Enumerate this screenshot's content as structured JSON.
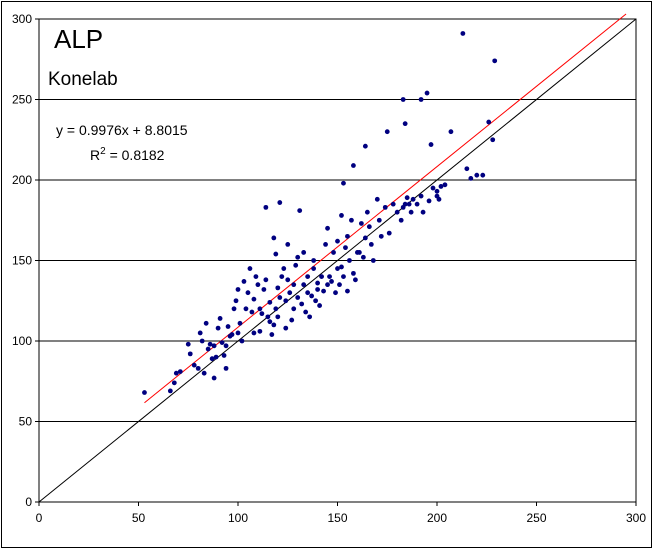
{
  "chart_data": {
    "type": "scatter",
    "title": "ALP",
    "subtitle": "Konelab",
    "annotations": {
      "equation": "y = 0.9976x + 8.8015",
      "r2_prefix": "R",
      "r2_sup": "2",
      "r2_suffix": " = 0.8182"
    },
    "xlim": [
      0,
      300
    ],
    "ylim": [
      0,
      300
    ],
    "x_ticks": [
      0,
      50,
      100,
      150,
      200,
      250,
      300
    ],
    "y_ticks": [
      0,
      50,
      100,
      150,
      200,
      250,
      300
    ],
    "grid": "horizontal",
    "colors": {
      "points": "#000080",
      "fit_line": "#ff0000",
      "identity_line": "#000000"
    },
    "fit_line": {
      "slope": 0.9976,
      "intercept": 8.8015,
      "x_range": [
        53,
        295
      ]
    },
    "identity_line": {
      "x_range": [
        0,
        300
      ]
    },
    "series": [
      {
        "points": [
          [
            53,
            68
          ],
          [
            66,
            69
          ],
          [
            68,
            74
          ],
          [
            69,
            80
          ],
          [
            71,
            81
          ],
          [
            75,
            98
          ],
          [
            76,
            92
          ],
          [
            78,
            85
          ],
          [
            80,
            83
          ],
          [
            81,
            105
          ],
          [
            82,
            100
          ],
          [
            83,
            80
          ],
          [
            84,
            111
          ],
          [
            85,
            95
          ],
          [
            86,
            98
          ],
          [
            87,
            89
          ],
          [
            88,
            97
          ],
          [
            88,
            77
          ],
          [
            89,
            90
          ],
          [
            90,
            108
          ],
          [
            91,
            114
          ],
          [
            92,
            99
          ],
          [
            93,
            91
          ],
          [
            94,
            83
          ],
          [
            94,
            97
          ],
          [
            95,
            109
          ],
          [
            96,
            103
          ],
          [
            97,
            104
          ],
          [
            98,
            120
          ],
          [
            99,
            125
          ],
          [
            100,
            132
          ],
          [
            100,
            105
          ],
          [
            101,
            111
          ],
          [
            102,
            100
          ],
          [
            103,
            137
          ],
          [
            104,
            120
          ],
          [
            105,
            130
          ],
          [
            106,
            145
          ],
          [
            107,
            118
          ],
          [
            108,
            126
          ],
          [
            108,
            105
          ],
          [
            109,
            140
          ],
          [
            110,
            135
          ],
          [
            111,
            120
          ],
          [
            111,
            106
          ],
          [
            112,
            117
          ],
          [
            113,
            132
          ],
          [
            114,
            138
          ],
          [
            114,
            183
          ],
          [
            115,
            115
          ],
          [
            116,
            112
          ],
          [
            116,
            124
          ],
          [
            117,
            104
          ],
          [
            118,
            110
          ],
          [
            118,
            164
          ],
          [
            119,
            120
          ],
          [
            119,
            154
          ],
          [
            120,
            133
          ],
          [
            120,
            115
          ],
          [
            121,
            186
          ],
          [
            121,
            127
          ],
          [
            122,
            140
          ],
          [
            123,
            145
          ],
          [
            124,
            125
          ],
          [
            124,
            108
          ],
          [
            125,
            138
          ],
          [
            125,
            160
          ],
          [
            126,
            130
          ],
          [
            127,
            113
          ],
          [
            128,
            120
          ],
          [
            128,
            135
          ],
          [
            129,
            147
          ],
          [
            130,
            127
          ],
          [
            130,
            152
          ],
          [
            131,
            181
          ],
          [
            132,
            123
          ],
          [
            133,
            135
          ],
          [
            133,
            155
          ],
          [
            134,
            118
          ],
          [
            135,
            130
          ],
          [
            135,
            140
          ],
          [
            136,
            115
          ],
          [
            137,
            128
          ],
          [
            138,
            145
          ],
          [
            138,
            150
          ],
          [
            139,
            125
          ],
          [
            140,
            136
          ],
          [
            140,
            132
          ],
          [
            141,
            122
          ],
          [
            142,
            140
          ],
          [
            143,
            131
          ],
          [
            144,
            160
          ],
          [
            145,
            135
          ],
          [
            145,
            170
          ],
          [
            146,
            140
          ],
          [
            147,
            137
          ],
          [
            148,
            155
          ],
          [
            149,
            130
          ],
          [
            150,
            145
          ],
          [
            150,
            162
          ],
          [
            151,
            135
          ],
          [
            152,
            146
          ],
          [
            152,
            178
          ],
          [
            153,
            198
          ],
          [
            153,
            140
          ],
          [
            154,
            158
          ],
          [
            155,
            131
          ],
          [
            155,
            165
          ],
          [
            156,
            150
          ],
          [
            157,
            175
          ],
          [
            158,
            209
          ],
          [
            158,
            142
          ],
          [
            159,
            138
          ],
          [
            160,
            155
          ],
          [
            161,
            155
          ],
          [
            162,
            173
          ],
          [
            163,
            152
          ],
          [
            164,
            221
          ],
          [
            164,
            164
          ],
          [
            165,
            180
          ],
          [
            166,
            171
          ],
          [
            167,
            160
          ],
          [
            168,
            150
          ],
          [
            170,
            188
          ],
          [
            171,
            175
          ],
          [
            172,
            165
          ],
          [
            174,
            183
          ],
          [
            175,
            230
          ],
          [
            176,
            167
          ],
          [
            178,
            185
          ],
          [
            180,
            180
          ],
          [
            182,
            175
          ],
          [
            183,
            250
          ],
          [
            183,
            183
          ],
          [
            184,
            185
          ],
          [
            184,
            235
          ],
          [
            185,
            189
          ],
          [
            186,
            185
          ],
          [
            187,
            180
          ],
          [
            188,
            188
          ],
          [
            190,
            185
          ],
          [
            192,
            190
          ],
          [
            192,
            250
          ],
          [
            193,
            180
          ],
          [
            195,
            254
          ],
          [
            196,
            187
          ],
          [
            197,
            222
          ],
          [
            198,
            195
          ],
          [
            200,
            190
          ],
          [
            200,
            193
          ],
          [
            201,
            188
          ],
          [
            202,
            196
          ],
          [
            204,
            197
          ],
          [
            207,
            230
          ],
          [
            213,
            291
          ],
          [
            215,
            207
          ],
          [
            217,
            201
          ],
          [
            220,
            203
          ],
          [
            223,
            203
          ],
          [
            226,
            236
          ],
          [
            228,
            225
          ],
          [
            229,
            274
          ]
        ]
      }
    ]
  }
}
